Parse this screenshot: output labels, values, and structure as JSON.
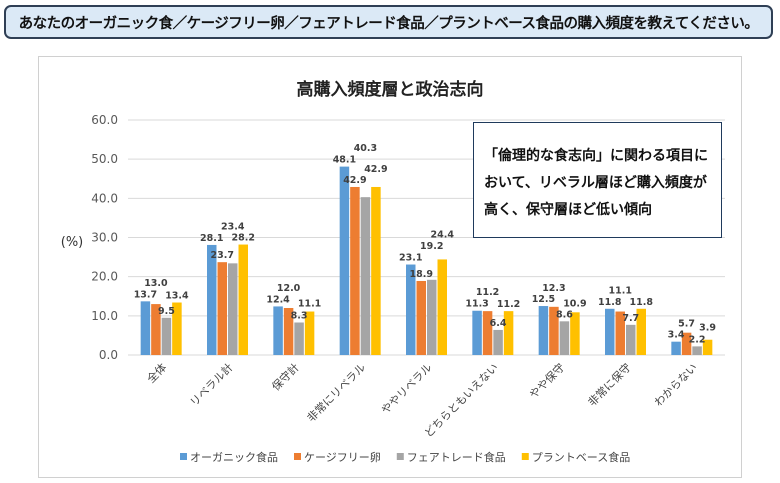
{
  "header": {
    "question": "あなたのオーガニック食／ケージフリー卵／フェアトレード食品／プラントベース食品の購入頻度を教えてください。"
  },
  "callout": {
    "text": "「倫理的な食志向」に関わる項目において、リベラル層ほど購入頻度が高く、保守層ほど低い傾向"
  },
  "chart_data": {
    "type": "bar",
    "title": "高購入頻度層と政治志向",
    "ylabel": "(%)",
    "ylim": [
      0,
      60
    ],
    "yticks": [
      "0.0",
      "10.0",
      "20.0",
      "30.0",
      "40.0",
      "50.0",
      "60.0"
    ],
    "grid": true,
    "legend": "bottom",
    "categories": [
      "全体",
      "リベラル計",
      "保守計",
      "非常にリベラル",
      "ややリベラル",
      "どちらともいえない",
      "やや保守",
      "非常に保守",
      "わからない"
    ],
    "series": [
      {
        "name": "オーガニック食品",
        "color": "#5b9bd5",
        "values": [
          13.7,
          28.1,
          12.4,
          48.1,
          23.1,
          11.3,
          12.5,
          11.8,
          3.4
        ]
      },
      {
        "name": "ケージフリー卵",
        "color": "#ed7d31",
        "values": [
          13.0,
          23.7,
          12.0,
          42.9,
          18.9,
          11.2,
          12.3,
          11.1,
          5.7
        ]
      },
      {
        "name": "フェアトレード食品",
        "color": "#a5a5a5",
        "values": [
          9.5,
          23.4,
          8.3,
          40.3,
          19.2,
          6.4,
          8.6,
          7.7,
          2.2
        ]
      },
      {
        "name": "プラントベース食品",
        "color": "#ffc000",
        "values": [
          13.4,
          28.2,
          11.1,
          42.9,
          24.4,
          11.2,
          10.9,
          11.8,
          3.9
        ]
      }
    ]
  }
}
